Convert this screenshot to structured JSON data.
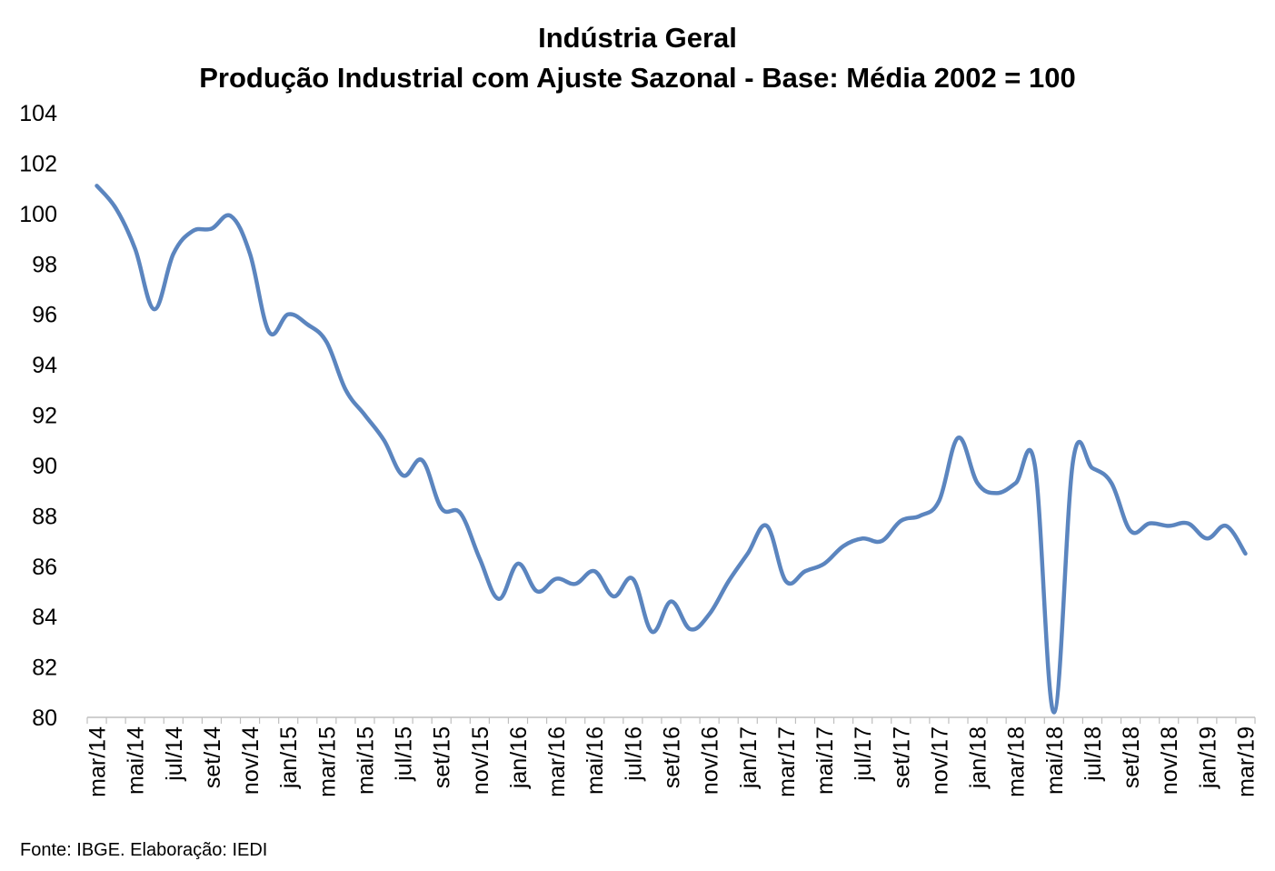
{
  "chart_data": {
    "type": "line",
    "title": "Indústria Geral",
    "subtitle": "Produção Industrial com Ajuste Sazonal - Base: Média 2002 = 100",
    "xlabel": "",
    "ylabel": "",
    "ylim": [
      80,
      104
    ],
    "yticks": [
      "80",
      "82",
      "84",
      "86",
      "88",
      "90",
      "92",
      "94",
      "96",
      "98",
      "100",
      "102",
      "104"
    ],
    "grid": false,
    "legend": "none",
    "colors": {
      "series": "#5B85BF",
      "axis": "#BFBFBF"
    },
    "x": [
      "mar/14",
      "abr/14",
      "mai/14",
      "jun/14",
      "jul/14",
      "ago/14",
      "set/14",
      "out/14",
      "nov/14",
      "dez/14",
      "jan/15",
      "fev/15",
      "mar/15",
      "abr/15",
      "mai/15",
      "jun/15",
      "jul/15",
      "ago/15",
      "set/15",
      "out/15",
      "nov/15",
      "dez/15",
      "jan/16",
      "fev/16",
      "mar/16",
      "abr/16",
      "mai/16",
      "jun/16",
      "jul/16",
      "ago/16",
      "set/16",
      "out/16",
      "nov/16",
      "dez/16",
      "jan/17",
      "fev/17",
      "mar/17",
      "abr/17",
      "mai/17",
      "jun/17",
      "jul/17",
      "ago/17",
      "set/17",
      "out/17",
      "nov/17",
      "dez/17",
      "jan/18",
      "fev/18",
      "mar/18",
      "abr/18",
      "mai/18",
      "jun/18",
      "jul/18",
      "ago/18",
      "set/18",
      "out/18",
      "nov/18",
      "dez/18",
      "jan/19",
      "fev/19",
      "mar/19"
    ],
    "x_tick_labels": [
      "mar/14",
      "mai/14",
      "jul/14",
      "set/14",
      "nov/14",
      "jan/15",
      "mar/15",
      "mai/15",
      "jul/15",
      "set/15",
      "nov/15",
      "jan/16",
      "mar/16",
      "mai/16",
      "jul/16",
      "set/16",
      "nov/16",
      "jan/17",
      "mar/17",
      "mai/17",
      "jul/17",
      "set/17",
      "nov/17",
      "jan/18",
      "mar/18",
      "mai/18",
      "jul/18",
      "set/18",
      "nov/18",
      "jan/19",
      "mar/19"
    ],
    "series": [
      {
        "values": [
          101.1,
          100.2,
          98.6,
          96.2,
          98.4,
          99.3,
          99.4,
          99.9,
          98.4,
          95.3,
          96.0,
          95.6,
          94.9,
          93.0,
          92.0,
          91.0,
          89.6,
          90.2,
          88.3,
          88.1,
          86.3,
          84.7,
          86.1,
          85.0,
          85.5,
          85.3,
          85.8,
          84.8,
          85.5,
          83.4,
          84.6,
          83.5,
          84.1,
          85.4,
          86.5,
          87.6,
          85.4,
          85.8,
          86.1,
          86.8,
          87.1,
          87.0,
          87.8,
          88.0,
          88.6,
          91.1,
          89.3,
          88.9,
          89.3,
          90.0,
          80.2,
          90.2,
          89.9,
          89.3,
          87.4,
          87.7,
          87.6,
          87.7,
          87.1,
          87.6,
          86.5
        ]
      }
    ]
  },
  "footer": {
    "source": "Fonte: IBGE. Elaboração: IEDI"
  }
}
